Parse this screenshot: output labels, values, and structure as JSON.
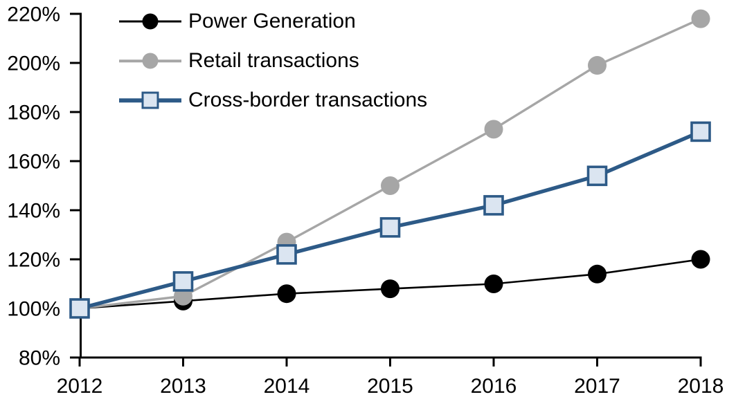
{
  "chart_data": {
    "type": "line",
    "title": "",
    "x_categories": [
      "2012",
      "2013",
      "2014",
      "2015",
      "2016",
      "2017",
      "2018"
    ],
    "series": [
      {
        "name": "Power Generation",
        "values": [
          100,
          103,
          106,
          108,
          110,
          114,
          120
        ],
        "color": "#000000",
        "marker": "circle",
        "marker_fill": "#000000"
      },
      {
        "name": "Retail transactions",
        "values": [
          100,
          105,
          127,
          150,
          173,
          199,
          218
        ],
        "color": "#A6A6A6",
        "marker": "circle",
        "marker_fill": "#A6A6A6"
      },
      {
        "name": "Cross-border transactions",
        "values": [
          100,
          111,
          122,
          133,
          142,
          154,
          172
        ],
        "color": "#2D5A87",
        "marker": "square",
        "marker_fill": "#DBE5F1"
      }
    ],
    "y_axis": {
      "min": 80,
      "max": 220,
      "step": 20,
      "unit": "%",
      "tick_labels": [
        "80%",
        "100%",
        "120%",
        "140%",
        "160%",
        "180%",
        "200%",
        "220%"
      ]
    },
    "x_axis": {
      "tick_labels": [
        "2012",
        "2013",
        "2014",
        "2015",
        "2016",
        "2017",
        "2018"
      ]
    },
    "legend_position": "top-left",
    "grid": false,
    "background": "#FFFFFF",
    "axis_color": "#000000"
  }
}
